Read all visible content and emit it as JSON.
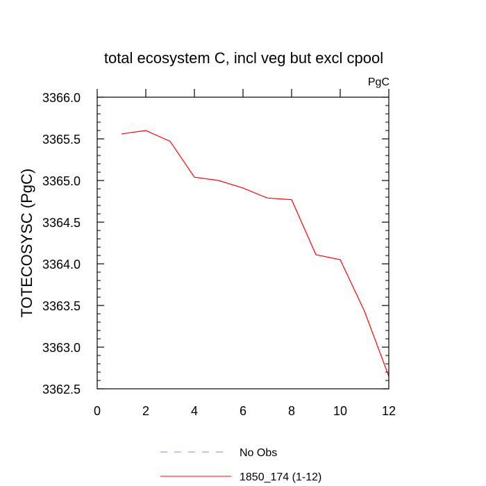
{
  "chart_data": {
    "type": "line",
    "title": "total ecosystem C, incl veg but excl cpool",
    "units_label": "PgC",
    "xlabel": "",
    "ylabel": "TOTECOSYSC  (PgC)",
    "xlim": [
      0,
      12
    ],
    "ylim": [
      3362.5,
      3366.0
    ],
    "x_ticks": [
      0,
      2,
      4,
      6,
      8,
      10,
      12
    ],
    "y_ticks": [
      3362.5,
      3363.0,
      3363.5,
      3364.0,
      3364.5,
      3365.0,
      3365.5,
      3366.0
    ],
    "x_tick_labels": [
      "0",
      "2",
      "4",
      "6",
      "8",
      "10",
      "12"
    ],
    "y_tick_labels": [
      "3362.5",
      "3363.0",
      "3363.5",
      "3364.0",
      "3364.5",
      "3365.0",
      "3365.5",
      "3366.0"
    ],
    "grid": false,
    "legend_position": "bottom-center",
    "series": [
      {
        "name": "No Obs",
        "color": "#8080ff",
        "dash": "dashed",
        "x": [],
        "values": []
      },
      {
        "name": "1850_174 (1-12)",
        "color": "#ff0000",
        "dash": "solid",
        "x": [
          1,
          2,
          3,
          4,
          5,
          6,
          7,
          8,
          9,
          10,
          11,
          12
        ],
        "values": [
          3365.56,
          3365.6,
          3365.47,
          3365.04,
          3365.0,
          3364.91,
          3364.79,
          3364.77,
          3364.11,
          3364.05,
          3363.43,
          3362.65
        ]
      }
    ]
  }
}
